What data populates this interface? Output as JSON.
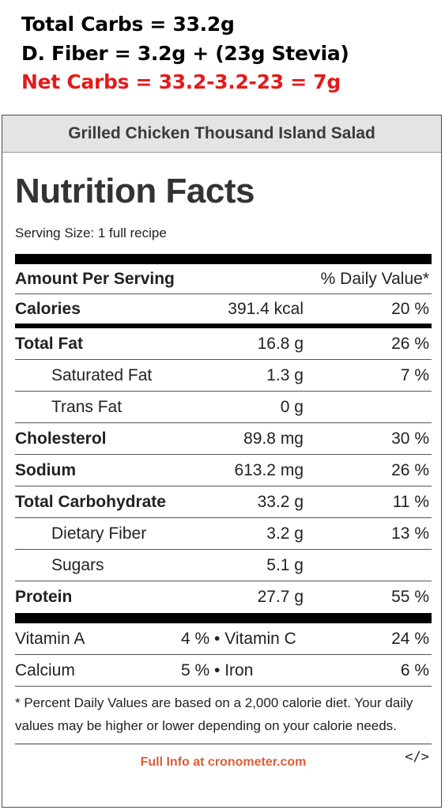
{
  "annotations": {
    "total_carbs": "Total Carbs = 33.2g",
    "fiber": "D. Fiber = 3.2g + (23g Stevia)",
    "net_carbs": "Net Carbs = 33.2-3.2-23 = 7g",
    "net_color": "#e31b1b"
  },
  "label": {
    "recipe_title": "Grilled Chicken Thousand Island Salad",
    "title": "Nutrition Facts",
    "serving": "Serving Size: 1 full recipe",
    "amount_header": "Amount Per Serving",
    "dv_header": "% Daily Value*",
    "calories": {
      "name": "Calories",
      "amount": "391.4 kcal",
      "dv": "20 %"
    },
    "nutrients": [
      {
        "name": "Total Fat",
        "amount": "16.8 g",
        "dv": "26 %"
      },
      {
        "name": "Saturated Fat",
        "amount": "1.3 g",
        "dv": "7 %"
      },
      {
        "name": "Trans Fat",
        "amount": "0 g",
        "dv": ""
      },
      {
        "name": "Cholesterol",
        "amount": "89.8 mg",
        "dv": "30 %"
      },
      {
        "name": "Sodium",
        "amount": "613.2 mg",
        "dv": "26 %"
      },
      {
        "name": "Total Carbohydrate",
        "amount": "33.2 g",
        "dv": "11 %"
      },
      {
        "name": "Dietary Fiber",
        "amount": "3.2 g",
        "dv": "13 %"
      },
      {
        "name": "Sugars",
        "amount": "5.1 g",
        "dv": ""
      },
      {
        "name": "Protein",
        "amount": "27.7 g",
        "dv": "55 %"
      }
    ],
    "vitamins": [
      {
        "a_name": "Vitamin A",
        "a_val": "4 % • Vitamin C",
        "b_val": "24 %"
      },
      {
        "a_name": "Calcium",
        "a_val": "5 % • Iron",
        "b_val": "6 %"
      }
    ],
    "footnote": "* Percent Daily Values are based on a 2,000 calorie diet. Your daily values may be higher or lower depending on your calorie needs.",
    "link": "Full Info at cronometer.com",
    "embed": "</>",
    "link_color": "#d9603a"
  }
}
